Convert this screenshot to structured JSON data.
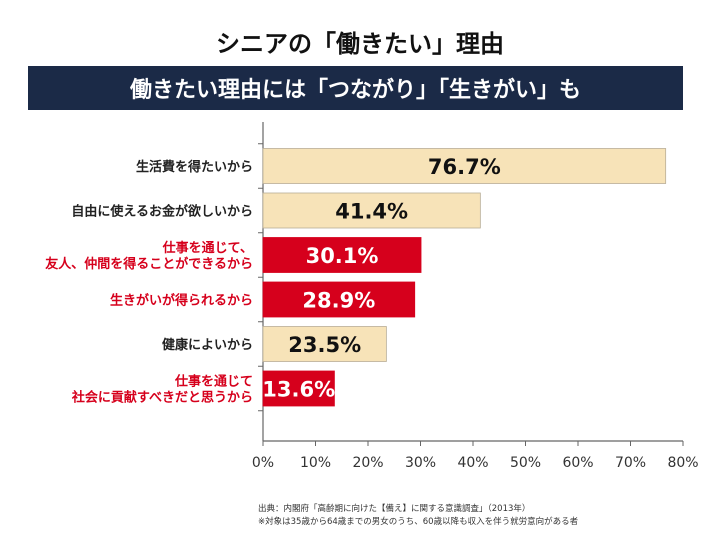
{
  "title": "シニアの「働きたい」理由",
  "banner": "働きたい理由には「つながり」「生きがい」も",
  "colors": {
    "banner_bg": "#1b2a47",
    "bar_light": "#f7e3b8",
    "bar_red": "#d6001c",
    "label_red": "#d6001c",
    "label_dark": "#222222"
  },
  "chart_data": {
    "type": "bar",
    "orientation": "horizontal",
    "categories": [
      "生活費を得たいから",
      "自由に使えるお金が欲しいから",
      "仕事を通じて、\n友人、仲間を得ることができるから",
      "生きがいが得られるから",
      "健康によいから",
      "仕事を通じて\n社会に貢献すべきだと思うから"
    ],
    "values": [
      76.7,
      41.4,
      30.1,
      28.9,
      23.5,
      13.6
    ],
    "data_labels": [
      "76.7%",
      "41.4%",
      "30.1%",
      "28.9%",
      "23.5%",
      "13.6%"
    ],
    "highlight": [
      false,
      false,
      true,
      true,
      false,
      true
    ],
    "xlim": [
      0,
      80
    ],
    "xticks": [
      "0%",
      "10%",
      "20%",
      "30%",
      "40%",
      "50%",
      "60%",
      "70%",
      "80%"
    ],
    "xlabel": "",
    "ylabel": "",
    "grid": false
  },
  "source": {
    "line1": "出典：内閣府「高齢期に向けた【備え】に関する意識調査」（2013年）",
    "line2": "※対象は35歳から64歳までの男女のうち、60歳以降も収入を伴う就労意向がある者"
  }
}
